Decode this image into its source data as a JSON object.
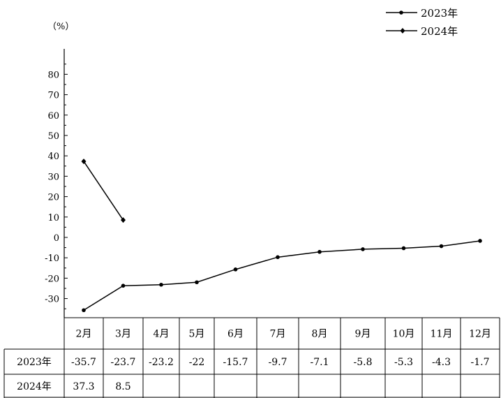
{
  "chart_data": {
    "type": "line",
    "unit_label": "（%）",
    "categories": [
      "2月",
      "3月",
      "4月",
      "5月",
      "6月",
      "7月",
      "8月",
      "9月",
      "10月",
      "11月",
      "12月"
    ],
    "yticks": [
      80,
      70,
      60,
      50,
      40,
      30,
      20,
      10,
      0,
      -10,
      -20,
      -30
    ],
    "ylim": [
      -35.7,
      88
    ],
    "series": [
      {
        "name": "2023年",
        "marker": "circle",
        "values": [
          -35.7,
          -23.7,
          -23.2,
          -22,
          -15.7,
          -9.7,
          -7.1,
          -5.8,
          -5.3,
          -4.3,
          -1.7
        ]
      },
      {
        "name": "2024年",
        "marker": "diamond",
        "values": [
          37.3,
          8.5,
          null,
          null,
          null,
          null,
          null,
          null,
          null,
          null,
          null
        ]
      }
    ],
    "table": {
      "rows": [
        {
          "label": "2023年",
          "cells": [
            "-35.7",
            "-23.7",
            "-23.2",
            "-22",
            "-15.7",
            "-9.7",
            "-7.1",
            "-5.8",
            "-5.3",
            "-4.3",
            "-1.7"
          ]
        },
        {
          "label": "2024年",
          "cells": [
            "37.3",
            "8.5",
            "",
            "",
            "",
            "",
            "",
            "",
            "",
            "",
            ""
          ]
        }
      ]
    }
  }
}
